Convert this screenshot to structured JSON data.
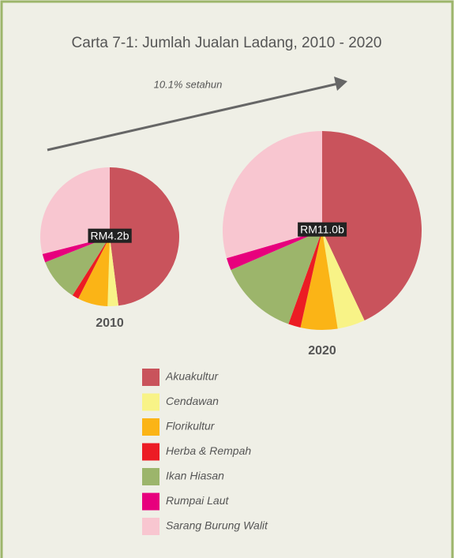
{
  "chart_data": {
    "type": "pie",
    "title": "Carta 7-1: Jumlah Jualan Ladang, 2010 - 2020",
    "annotation": "10.1% setahun",
    "categories": [
      "Akuakultur",
      "Cendawan",
      "Florikultur",
      "Herba & Rempah",
      "Ikan Hiasan",
      "Rumpai Laut",
      "Sarang Burung Walit"
    ],
    "colors": [
      "#c9535c",
      "#f8f387",
      "#fbb416",
      "#ec1c24",
      "#9cb56b",
      "#e7007d",
      "#f8c6d0"
    ],
    "series": [
      {
        "name": "2010",
        "total": "RM4.2b",
        "values": [
          48,
          2.5,
          7,
          1.5,
          10,
          2,
          29
        ]
      },
      {
        "name": "2020",
        "total": "RM11.0b",
        "values": [
          43,
          4.5,
          6,
          2,
          13,
          2,
          29.5
        ]
      }
    ]
  }
}
